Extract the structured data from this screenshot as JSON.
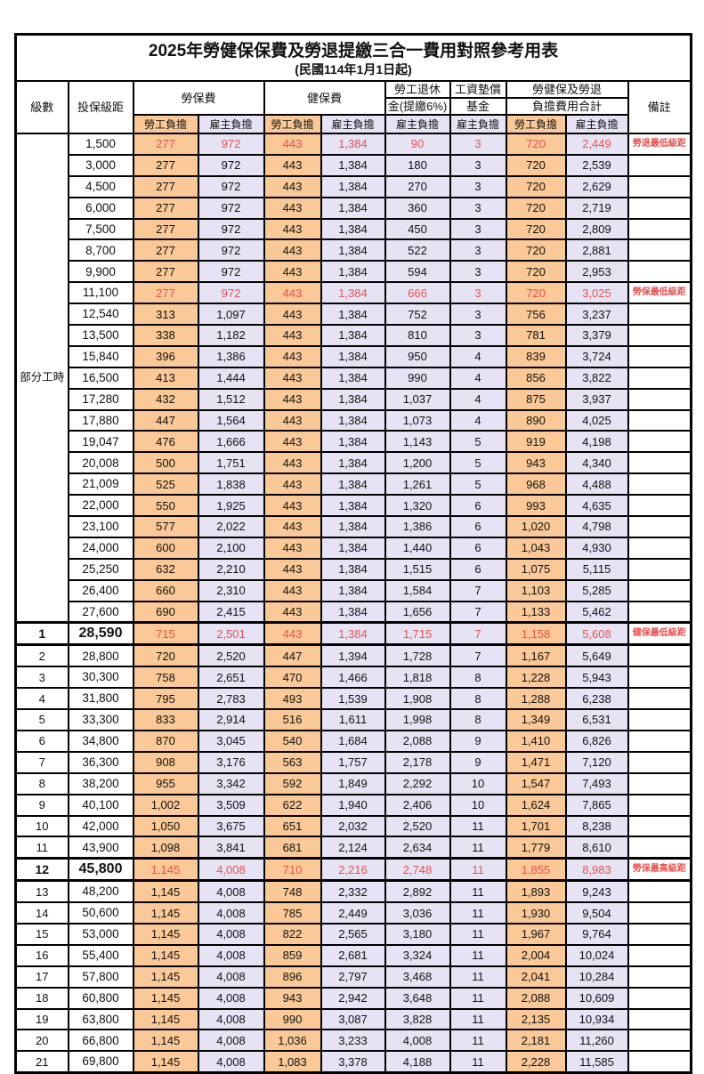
{
  "title": "2025年勞健保保費及勞退提繳三合一費用對照參考用表",
  "subtitle": "(民國114年1月1日起)",
  "colors": {
    "employee_bg": "#fac997",
    "employer_bg": "#e6e4f4",
    "red_text": "#e8504f",
    "border": "#000000"
  },
  "header": {
    "level": "級數",
    "bracket": "投保級距",
    "labor_ins": "勞保費",
    "health_ins": "健保費",
    "pension_line1": "勞工退休",
    "pension_line2": "金(提繳6%)",
    "wage_fund_line1": "工資墊償",
    "wage_fund_line2": "基金",
    "total_line1": "勞健保及勞退",
    "total_line2": "負擔費用合計",
    "remark": "備註",
    "employee": "勞工負擔",
    "employer": "雇主負擔"
  },
  "part_time": {
    "label": "部分工時",
    "rowspan": 23
  },
  "rows": [
    {
      "level": "",
      "bracket": "1,500",
      "v": [
        "277",
        "972",
        "443",
        "1,384",
        "90",
        "3",
        "720",
        "2,449"
      ],
      "remark": "勞退最低級距",
      "red": true,
      "strong": false
    },
    {
      "level": "",
      "bracket": "3,000",
      "v": [
        "277",
        "972",
        "443",
        "1,384",
        "180",
        "3",
        "720",
        "2,539"
      ],
      "remark": "",
      "red": false,
      "strong": false
    },
    {
      "level": "",
      "bracket": "4,500",
      "v": [
        "277",
        "972",
        "443",
        "1,384",
        "270",
        "3",
        "720",
        "2,629"
      ],
      "remark": "",
      "red": false,
      "strong": false
    },
    {
      "level": "",
      "bracket": "6,000",
      "v": [
        "277",
        "972",
        "443",
        "1,384",
        "360",
        "3",
        "720",
        "2,719"
      ],
      "remark": "",
      "red": false,
      "strong": false
    },
    {
      "level": "",
      "bracket": "7,500",
      "v": [
        "277",
        "972",
        "443",
        "1,384",
        "450",
        "3",
        "720",
        "2,809"
      ],
      "remark": "",
      "red": false,
      "strong": false
    },
    {
      "level": "",
      "bracket": "8,700",
      "v": [
        "277",
        "972",
        "443",
        "1,384",
        "522",
        "3",
        "720",
        "2,881"
      ],
      "remark": "",
      "red": false,
      "strong": false
    },
    {
      "level": "",
      "bracket": "9,900",
      "v": [
        "277",
        "972",
        "443",
        "1,384",
        "594",
        "3",
        "720",
        "2,953"
      ],
      "remark": "",
      "red": false,
      "strong": false
    },
    {
      "level": "",
      "bracket": "11,100",
      "v": [
        "277",
        "972",
        "443",
        "1,384",
        "666",
        "3",
        "720",
        "3,025"
      ],
      "remark": "勞保最低級距",
      "red": true,
      "strong": false
    },
    {
      "level": "",
      "bracket": "12,540",
      "v": [
        "313",
        "1,097",
        "443",
        "1,384",
        "752",
        "3",
        "756",
        "3,237"
      ],
      "remark": "",
      "red": false,
      "strong": false
    },
    {
      "level": "",
      "bracket": "13,500",
      "v": [
        "338",
        "1,182",
        "443",
        "1,384",
        "810",
        "3",
        "781",
        "3,379"
      ],
      "remark": "",
      "red": false,
      "strong": false
    },
    {
      "level": "",
      "bracket": "15,840",
      "v": [
        "396",
        "1,386",
        "443",
        "1,384",
        "950",
        "4",
        "839",
        "3,724"
      ],
      "remark": "",
      "red": false,
      "strong": false
    },
    {
      "level": "",
      "bracket": "16,500",
      "v": [
        "413",
        "1,444",
        "443",
        "1,384",
        "990",
        "4",
        "856",
        "3,822"
      ],
      "remark": "",
      "red": false,
      "strong": false
    },
    {
      "level": "",
      "bracket": "17,280",
      "v": [
        "432",
        "1,512",
        "443",
        "1,384",
        "1,037",
        "4",
        "875",
        "3,937"
      ],
      "remark": "",
      "red": false,
      "strong": false
    },
    {
      "level": "",
      "bracket": "17,880",
      "v": [
        "447",
        "1,564",
        "443",
        "1,384",
        "1,073",
        "4",
        "890",
        "4,025"
      ],
      "remark": "",
      "red": false,
      "strong": false
    },
    {
      "level": "",
      "bracket": "19,047",
      "v": [
        "476",
        "1,666",
        "443",
        "1,384",
        "1,143",
        "5",
        "919",
        "4,198"
      ],
      "remark": "",
      "red": false,
      "strong": false
    },
    {
      "level": "",
      "bracket": "20,008",
      "v": [
        "500",
        "1,751",
        "443",
        "1,384",
        "1,200",
        "5",
        "943",
        "4,340"
      ],
      "remark": "",
      "red": false,
      "strong": false
    },
    {
      "level": "",
      "bracket": "21,009",
      "v": [
        "525",
        "1,838",
        "443",
        "1,384",
        "1,261",
        "5",
        "968",
        "4,488"
      ],
      "remark": "",
      "red": false,
      "strong": false
    },
    {
      "level": "",
      "bracket": "22,000",
      "v": [
        "550",
        "1,925",
        "443",
        "1,384",
        "1,320",
        "6",
        "993",
        "4,635"
      ],
      "remark": "",
      "red": false,
      "strong": false
    },
    {
      "level": "",
      "bracket": "23,100",
      "v": [
        "577",
        "2,022",
        "443",
        "1,384",
        "1,386",
        "6",
        "1,020",
        "4,798"
      ],
      "remark": "",
      "red": false,
      "strong": false
    },
    {
      "level": "",
      "bracket": "24,000",
      "v": [
        "600",
        "2,100",
        "443",
        "1,384",
        "1,440",
        "6",
        "1,043",
        "4,930"
      ],
      "remark": "",
      "red": false,
      "strong": false
    },
    {
      "level": "",
      "bracket": "25,250",
      "v": [
        "632",
        "2,210",
        "443",
        "1,384",
        "1,515",
        "6",
        "1,075",
        "5,115"
      ],
      "remark": "",
      "red": false,
      "strong": false
    },
    {
      "level": "",
      "bracket": "26,400",
      "v": [
        "660",
        "2,310",
        "443",
        "1,384",
        "1,584",
        "7",
        "1,103",
        "5,285"
      ],
      "remark": "",
      "red": false,
      "strong": false
    },
    {
      "level": "",
      "bracket": "27,600",
      "v": [
        "690",
        "2,415",
        "443",
        "1,384",
        "1,656",
        "7",
        "1,133",
        "5,462"
      ],
      "remark": "",
      "red": false,
      "strong": false
    },
    {
      "level": "1",
      "bracket": "28,590",
      "v": [
        "715",
        "2,501",
        "443",
        "1,384",
        "1,715",
        "7",
        "1,158",
        "5,608"
      ],
      "remark": "健保最低級距",
      "red": true,
      "strong": true
    },
    {
      "level": "2",
      "bracket": "28,800",
      "v": [
        "720",
        "2,520",
        "447",
        "1,394",
        "1,728",
        "7",
        "1,167",
        "5,649"
      ],
      "remark": "",
      "red": false,
      "strong": false
    },
    {
      "level": "3",
      "bracket": "30,300",
      "v": [
        "758",
        "2,651",
        "470",
        "1,466",
        "1,818",
        "8",
        "1,228",
        "5,943"
      ],
      "remark": "",
      "red": false,
      "strong": false
    },
    {
      "level": "4",
      "bracket": "31,800",
      "v": [
        "795",
        "2,783",
        "493",
        "1,539",
        "1,908",
        "8",
        "1,288",
        "6,238"
      ],
      "remark": "",
      "red": false,
      "strong": false
    },
    {
      "level": "5",
      "bracket": "33,300",
      "v": [
        "833",
        "2,914",
        "516",
        "1,611",
        "1,998",
        "8",
        "1,349",
        "6,531"
      ],
      "remark": "",
      "red": false,
      "strong": false
    },
    {
      "level": "6",
      "bracket": "34,800",
      "v": [
        "870",
        "3,045",
        "540",
        "1,684",
        "2,088",
        "9",
        "1,410",
        "6,826"
      ],
      "remark": "",
      "red": false,
      "strong": false
    },
    {
      "level": "7",
      "bracket": "36,300",
      "v": [
        "908",
        "3,176",
        "563",
        "1,757",
        "2,178",
        "9",
        "1,471",
        "7,120"
      ],
      "remark": "",
      "red": false,
      "strong": false
    },
    {
      "level": "8",
      "bracket": "38,200",
      "v": [
        "955",
        "3,342",
        "592",
        "1,849",
        "2,292",
        "10",
        "1,547",
        "7,493"
      ],
      "remark": "",
      "red": false,
      "strong": false
    },
    {
      "level": "9",
      "bracket": "40,100",
      "v": [
        "1,002",
        "3,509",
        "622",
        "1,940",
        "2,406",
        "10",
        "1,624",
        "7,865"
      ],
      "remark": "",
      "red": false,
      "strong": false
    },
    {
      "level": "10",
      "bracket": "42,000",
      "v": [
        "1,050",
        "3,675",
        "651",
        "2,032",
        "2,520",
        "11",
        "1,701",
        "8,238"
      ],
      "remark": "",
      "red": false,
      "strong": false
    },
    {
      "level": "11",
      "bracket": "43,900",
      "v": [
        "1,098",
        "3,841",
        "681",
        "2,124",
        "2,634",
        "11",
        "1,779",
        "8,610"
      ],
      "remark": "",
      "red": false,
      "strong": false
    },
    {
      "level": "12",
      "bracket": "45,800",
      "v": [
        "1,145",
        "4,008",
        "710",
        "2,216",
        "2,748",
        "11",
        "1,855",
        "8,983"
      ],
      "remark": "勞保最高級距",
      "red": true,
      "strong": true
    },
    {
      "level": "13",
      "bracket": "48,200",
      "v": [
        "1,145",
        "4,008",
        "748",
        "2,332",
        "2,892",
        "11",
        "1,893",
        "9,243"
      ],
      "remark": "",
      "red": false,
      "strong": false
    },
    {
      "level": "14",
      "bracket": "50,600",
      "v": [
        "1,145",
        "4,008",
        "785",
        "2,449",
        "3,036",
        "11",
        "1,930",
        "9,504"
      ],
      "remark": "",
      "red": false,
      "strong": false
    },
    {
      "level": "15",
      "bracket": "53,000",
      "v": [
        "1,145",
        "4,008",
        "822",
        "2,565",
        "3,180",
        "11",
        "1,967",
        "9,764"
      ],
      "remark": "",
      "red": false,
      "strong": false
    },
    {
      "level": "16",
      "bracket": "55,400",
      "v": [
        "1,145",
        "4,008",
        "859",
        "2,681",
        "3,324",
        "11",
        "2,004",
        "10,024"
      ],
      "remark": "",
      "red": false,
      "strong": false
    },
    {
      "level": "17",
      "bracket": "57,800",
      "v": [
        "1,145",
        "4,008",
        "896",
        "2,797",
        "3,468",
        "11",
        "2,041",
        "10,284"
      ],
      "remark": "",
      "red": false,
      "strong": false
    },
    {
      "level": "18",
      "bracket": "60,800",
      "v": [
        "1,145",
        "4,008",
        "943",
        "2,942",
        "3,648",
        "11",
        "2,088",
        "10,609"
      ],
      "remark": "",
      "red": false,
      "strong": false
    },
    {
      "level": "19",
      "bracket": "63,800",
      "v": [
        "1,145",
        "4,008",
        "990",
        "3,087",
        "3,828",
        "11",
        "2,135",
        "10,934"
      ],
      "remark": "",
      "red": false,
      "strong": false
    },
    {
      "level": "20",
      "bracket": "66,800",
      "v": [
        "1,145",
        "4,008",
        "1,036",
        "3,233",
        "4,008",
        "11",
        "2,181",
        "11,260"
      ],
      "remark": "",
      "red": false,
      "strong": false
    },
    {
      "level": "21",
      "bracket": "69,800",
      "v": [
        "1,145",
        "4,008",
        "1,083",
        "3,378",
        "4,188",
        "11",
        "2,228",
        "11,585"
      ],
      "remark": "",
      "red": false,
      "strong": false
    }
  ],
  "value_column_kinds": [
    "emp",
    "er",
    "emp",
    "er",
    "er",
    "er",
    "emp",
    "er"
  ]
}
